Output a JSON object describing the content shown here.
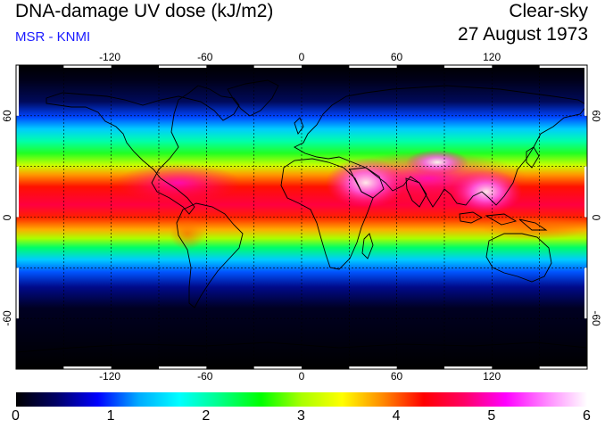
{
  "header": {
    "title": "DNA-damage UV dose (kJ/m2)",
    "source": "MSR - KNMI",
    "condition": "Clear-sky",
    "date": "27 August 1973"
  },
  "map": {
    "projection": "equirectangular",
    "lon_range": [
      -180,
      180
    ],
    "lat_range": [
      -90,
      90
    ],
    "lon_ticks": [
      "-120",
      "-60",
      "0",
      "60",
      "120"
    ],
    "lat_ticks": [
      "60",
      "0",
      "-60"
    ],
    "grid_lines_lon": [
      -150,
      -120,
      -90,
      -60,
      -30,
      0,
      30,
      60,
      90,
      120,
      150
    ],
    "grid_lines_lat": [
      -60,
      -30,
      0,
      30,
      60
    ],
    "background_color": "#000000",
    "coastline_color": "#000000"
  },
  "colorbar": {
    "min": 0,
    "max": 6,
    "tick_labels": [
      "0",
      "1",
      "2",
      "3",
      "4",
      "5",
      "6"
    ],
    "colors": [
      "#000000",
      "#000066",
      "#0000ff",
      "#00aaff",
      "#00ffff",
      "#00ff88",
      "#00ff00",
      "#aaff00",
      "#ffff00",
      "#ff8800",
      "#ff0000",
      "#ff0066",
      "#ff00ff",
      "#ff88ff",
      "#ffffff"
    ]
  }
}
